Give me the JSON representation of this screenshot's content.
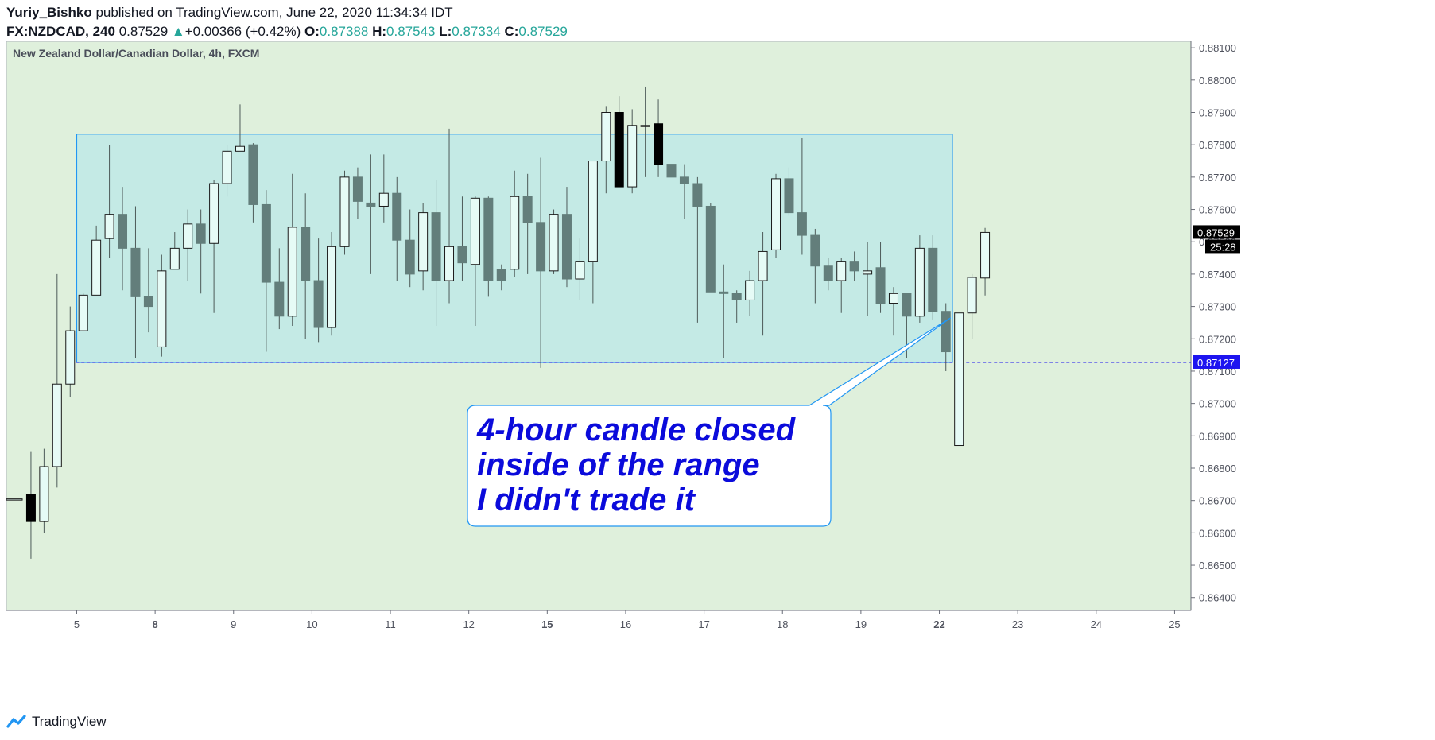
{
  "header": {
    "publisher_line_user": "Yuriy_Bishko",
    "publisher_line_rest": " published on TradingView.com, June 22, 2020 11:34:34 IDT",
    "symbol": "FX:NZDCAD, 240",
    "last": "0.87529",
    "change_arrow": "▲",
    "change": "+0.00366 (+0.42%)",
    "o_label": "O:",
    "o_value": "0.87388",
    "h_label": "H:",
    "h_value": "0.87543",
    "l_label": "L:",
    "l_value": "0.87334",
    "c_label": "C:",
    "c_value": "0.87529"
  },
  "footer": {
    "brand": "TradingView"
  },
  "colors": {
    "plot_bg": "#dff0dc",
    "range_fill": "#bfe9e6",
    "range_stroke": "#2196f3",
    "bear": "#637e7b",
    "bull": "#e6fbf6",
    "annotation_text": "#0b0bdb",
    "support_label_bg": "#1d14f0",
    "price_label_bg": "#000000"
  },
  "chart_data": {
    "type": "candlestick",
    "title": "New Zealand Dollar/Canadian Dollar, 4h, FXCM",
    "ylim": [
      0.8636,
      0.8812
    ],
    "y_ticks": [
      "0.88100",
      "0.88000",
      "0.87900",
      "0.87800",
      "0.87700",
      "0.87600",
      "0.87500",
      "0.87400",
      "0.87300",
      "0.87200",
      "0.87100",
      "0.87000",
      "0.86900",
      "0.86800",
      "0.86700",
      "0.86600",
      "0.86500",
      "0.86400"
    ],
    "x_ticks": [
      {
        "label": "5",
        "index": 4.5,
        "bold": false
      },
      {
        "label": "8",
        "index": 10.5,
        "bold": true
      },
      {
        "label": "9",
        "index": 16.5,
        "bold": false
      },
      {
        "label": "10",
        "index": 22.5,
        "bold": false
      },
      {
        "label": "11",
        "index": 28.5,
        "bold": false
      },
      {
        "label": "12",
        "index": 34.5,
        "bold": false
      },
      {
        "label": "15",
        "index": 40.5,
        "bold": true
      },
      {
        "label": "16",
        "index": 46.5,
        "bold": false
      },
      {
        "label": "17",
        "index": 52.5,
        "bold": false
      },
      {
        "label": "18",
        "index": 58.5,
        "bold": false
      },
      {
        "label": "19",
        "index": 64.5,
        "bold": false
      },
      {
        "label": "22",
        "index": 70.5,
        "bold": true
      },
      {
        "label": "23",
        "index": 76.5,
        "bold": false
      },
      {
        "label": "24",
        "index": 82.5,
        "bold": false
      },
      {
        "label": "25",
        "index": 88.5,
        "bold": false
      }
    ],
    "x_index_max": 90.5,
    "candles": [
      {
        "o": 0.86705,
        "h": 0.86705,
        "l": 0.86705,
        "c": 0.86705,
        "s": "partial"
      },
      {
        "o": 0.8672,
        "h": 0.8685,
        "l": 0.8652,
        "c": 0.86635,
        "s": "black"
      },
      {
        "o": 0.86635,
        "h": 0.8686,
        "l": 0.866,
        "c": 0.86805,
        "s": "bull"
      },
      {
        "o": 0.86805,
        "h": 0.874,
        "l": 0.8674,
        "c": 0.8706,
        "s": "bull"
      },
      {
        "o": 0.8706,
        "h": 0.873,
        "l": 0.8702,
        "c": 0.87225,
        "s": "bull"
      },
      {
        "o": 0.87225,
        "h": 0.8734,
        "l": 0.87225,
        "c": 0.87335,
        "s": "bull"
      },
      {
        "o": 0.87335,
        "h": 0.8755,
        "l": 0.87335,
        "c": 0.87505,
        "s": "bull"
      },
      {
        "o": 0.8751,
        "h": 0.878,
        "l": 0.8745,
        "c": 0.87585,
        "s": "bull"
      },
      {
        "o": 0.87585,
        "h": 0.8767,
        "l": 0.8735,
        "c": 0.8748,
        "s": "bear"
      },
      {
        "o": 0.8748,
        "h": 0.8761,
        "l": 0.8714,
        "c": 0.8733,
        "s": "bear"
      },
      {
        "o": 0.8733,
        "h": 0.8748,
        "l": 0.8722,
        "c": 0.873,
        "s": "bear"
      },
      {
        "o": 0.87175,
        "h": 0.8746,
        "l": 0.87145,
        "c": 0.8741,
        "s": "bull"
      },
      {
        "o": 0.87415,
        "h": 0.8753,
        "l": 0.87415,
        "c": 0.8748,
        "s": "bull"
      },
      {
        "o": 0.8748,
        "h": 0.876,
        "l": 0.8738,
        "c": 0.87555,
        "s": "bull"
      },
      {
        "o": 0.87555,
        "h": 0.876,
        "l": 0.8734,
        "c": 0.87495,
        "s": "bear"
      },
      {
        "o": 0.87495,
        "h": 0.8769,
        "l": 0.8728,
        "c": 0.8768,
        "s": "bull"
      },
      {
        "o": 0.8768,
        "h": 0.878,
        "l": 0.8764,
        "c": 0.8778,
        "s": "bull"
      },
      {
        "o": 0.8778,
        "h": 0.87925,
        "l": 0.8778,
        "c": 0.87795,
        "s": "bull"
      },
      {
        "o": 0.878,
        "h": 0.87805,
        "l": 0.8756,
        "c": 0.87615,
        "s": "bear"
      },
      {
        "o": 0.87615,
        "h": 0.8766,
        "l": 0.8716,
        "c": 0.87375,
        "s": "bear"
      },
      {
        "o": 0.87375,
        "h": 0.8748,
        "l": 0.8723,
        "c": 0.8727,
        "s": "bear"
      },
      {
        "o": 0.8727,
        "h": 0.8771,
        "l": 0.8724,
        "c": 0.87545,
        "s": "bull"
      },
      {
        "o": 0.87545,
        "h": 0.8765,
        "l": 0.872,
        "c": 0.8738,
        "s": "bear"
      },
      {
        "o": 0.8738,
        "h": 0.8751,
        "l": 0.8719,
        "c": 0.87235,
        "s": "bear"
      },
      {
        "o": 0.87235,
        "h": 0.8753,
        "l": 0.8721,
        "c": 0.87485,
        "s": "bull"
      },
      {
        "o": 0.87485,
        "h": 0.8772,
        "l": 0.8746,
        "c": 0.877,
        "s": "bull"
      },
      {
        "o": 0.877,
        "h": 0.8773,
        "l": 0.8757,
        "c": 0.87625,
        "s": "bear"
      },
      {
        "o": 0.8762,
        "h": 0.8777,
        "l": 0.874,
        "c": 0.8761,
        "s": "bear"
      },
      {
        "o": 0.8761,
        "h": 0.8777,
        "l": 0.8756,
        "c": 0.8765,
        "s": "bull"
      },
      {
        "o": 0.8765,
        "h": 0.877,
        "l": 0.8738,
        "c": 0.87505,
        "s": "bear"
      },
      {
        "o": 0.87505,
        "h": 0.876,
        "l": 0.8736,
        "c": 0.874,
        "s": "bear"
      },
      {
        "o": 0.8741,
        "h": 0.8762,
        "l": 0.8735,
        "c": 0.8759,
        "s": "bull"
      },
      {
        "o": 0.8759,
        "h": 0.8769,
        "l": 0.8724,
        "c": 0.8738,
        "s": "bear"
      },
      {
        "o": 0.8738,
        "h": 0.8785,
        "l": 0.8731,
        "c": 0.87485,
        "s": "bull"
      },
      {
        "o": 0.87485,
        "h": 0.8764,
        "l": 0.8738,
        "c": 0.87435,
        "s": "bear"
      },
      {
        "o": 0.8743,
        "h": 0.8764,
        "l": 0.8724,
        "c": 0.87635,
        "s": "bull"
      },
      {
        "o": 0.87635,
        "h": 0.8764,
        "l": 0.8733,
        "c": 0.8738,
        "s": "bear"
      },
      {
        "o": 0.8738,
        "h": 0.8743,
        "l": 0.8735,
        "c": 0.87415,
        "s": "bear"
      },
      {
        "o": 0.87415,
        "h": 0.8772,
        "l": 0.8739,
        "c": 0.8764,
        "s": "bull"
      },
      {
        "o": 0.8764,
        "h": 0.8771,
        "l": 0.874,
        "c": 0.8756,
        "s": "bear"
      },
      {
        "o": 0.8756,
        "h": 0.8776,
        "l": 0.8711,
        "c": 0.8741,
        "s": "bear"
      },
      {
        "o": 0.8741,
        "h": 0.876,
        "l": 0.874,
        "c": 0.87585,
        "s": "bull"
      },
      {
        "o": 0.87585,
        "h": 0.8767,
        "l": 0.8736,
        "c": 0.87385,
        "s": "bear"
      },
      {
        "o": 0.87385,
        "h": 0.8751,
        "l": 0.8732,
        "c": 0.8744,
        "s": "bull"
      },
      {
        "o": 0.8744,
        "h": 0.8775,
        "l": 0.8731,
        "c": 0.8775,
        "s": "bull"
      },
      {
        "o": 0.8775,
        "h": 0.8792,
        "l": 0.8765,
        "c": 0.879,
        "s": "bull"
      },
      {
        "o": 0.879,
        "h": 0.8795,
        "l": 0.8767,
        "c": 0.8767,
        "s": "black"
      },
      {
        "o": 0.8767,
        "h": 0.8791,
        "l": 0.8765,
        "c": 0.8786,
        "s": "bull"
      },
      {
        "o": 0.8786,
        "h": 0.8798,
        "l": 0.877,
        "c": 0.8786,
        "s": "doji"
      },
      {
        "o": 0.87865,
        "h": 0.8794,
        "l": 0.877,
        "c": 0.8774,
        "s": "black"
      },
      {
        "o": 0.8774,
        "h": 0.8774,
        "l": 0.877,
        "c": 0.877,
        "s": "bear"
      },
      {
        "o": 0.877,
        "h": 0.8774,
        "l": 0.8757,
        "c": 0.8768,
        "s": "bear"
      },
      {
        "o": 0.8768,
        "h": 0.877,
        "l": 0.8725,
        "c": 0.8761,
        "s": "bear"
      },
      {
        "o": 0.8761,
        "h": 0.8762,
        "l": 0.8735,
        "c": 0.87345,
        "s": "bear"
      },
      {
        "o": 0.87345,
        "h": 0.8743,
        "l": 0.8714,
        "c": 0.8734,
        "s": "bear"
      },
      {
        "o": 0.8734,
        "h": 0.8735,
        "l": 0.8725,
        "c": 0.8732,
        "s": "bear"
      },
      {
        "o": 0.8732,
        "h": 0.8741,
        "l": 0.8727,
        "c": 0.8738,
        "s": "bull"
      },
      {
        "o": 0.8738,
        "h": 0.8753,
        "l": 0.8721,
        "c": 0.8747,
        "s": "bull"
      },
      {
        "o": 0.87475,
        "h": 0.8771,
        "l": 0.8745,
        "c": 0.87695,
        "s": "bull"
      },
      {
        "o": 0.87695,
        "h": 0.8773,
        "l": 0.8758,
        "c": 0.8759,
        "s": "bear"
      },
      {
        "o": 0.8759,
        "h": 0.8782,
        "l": 0.8746,
        "c": 0.8752,
        "s": "bear"
      },
      {
        "o": 0.8752,
        "h": 0.8754,
        "l": 0.8731,
        "c": 0.87425,
        "s": "bear"
      },
      {
        "o": 0.87425,
        "h": 0.8745,
        "l": 0.8735,
        "c": 0.8738,
        "s": "bear"
      },
      {
        "o": 0.8738,
        "h": 0.8745,
        "l": 0.8728,
        "c": 0.8744,
        "s": "bull"
      },
      {
        "o": 0.8744,
        "h": 0.8747,
        "l": 0.8738,
        "c": 0.8741,
        "s": "bear"
      },
      {
        "o": 0.8741,
        "h": 0.875,
        "l": 0.8727,
        "c": 0.874,
        "s": "bull"
      },
      {
        "o": 0.8742,
        "h": 0.875,
        "l": 0.8728,
        "c": 0.8731,
        "s": "bear"
      },
      {
        "o": 0.8731,
        "h": 0.8736,
        "l": 0.8721,
        "c": 0.8734,
        "s": "bull"
      },
      {
        "o": 0.8734,
        "h": 0.8734,
        "l": 0.8714,
        "c": 0.8727,
        "s": "bear"
      },
      {
        "o": 0.8727,
        "h": 0.8752,
        "l": 0.8725,
        "c": 0.8748,
        "s": "bull"
      },
      {
        "o": 0.8748,
        "h": 0.8752,
        "l": 0.8726,
        "c": 0.87285,
        "s": "bear"
      },
      {
        "o": 0.87285,
        "h": 0.8731,
        "l": 0.871,
        "c": 0.8716,
        "s": "bear"
      },
      {
        "o": 0.8728,
        "h": 0.8728,
        "l": 0.8687,
        "c": 0.8687,
        "s": "bull"
      },
      {
        "o": 0.8728,
        "h": 0.874,
        "l": 0.872,
        "c": 0.8739,
        "s": "bull"
      },
      {
        "o": 0.87388,
        "h": 0.87543,
        "l": 0.87334,
        "c": 0.87529,
        "s": "bull"
      }
    ],
    "range_box": {
      "top": 0.87833,
      "bottom": 0.87127,
      "x_start": 4.5,
      "x_end": 71.5
    },
    "support_line": {
      "value": 0.87127,
      "label": "0.87127",
      "x_start": 4.0
    },
    "last_price": {
      "value": 0.87529,
      "label": "0.87529",
      "countdown": "25:28"
    },
    "annotation": {
      "lines": [
        "4-hour candle closed",
        "inside of the range",
        "I didn't trade it"
      ],
      "arrow_target": {
        "index": 71.0,
        "price": 0.87265
      }
    }
  }
}
